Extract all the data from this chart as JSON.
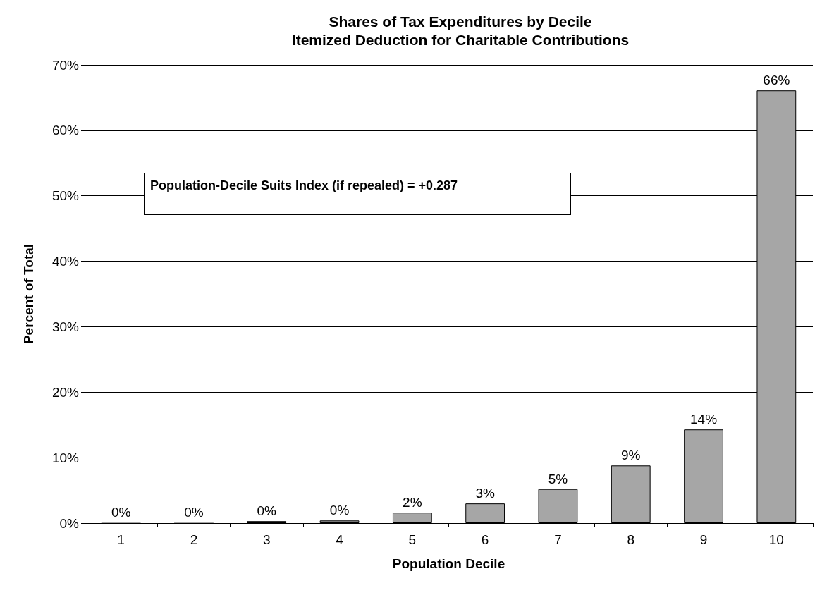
{
  "chart_data": {
    "type": "bar",
    "title": "Shares of Tax Expenditures by Decile\nItemized Deduction for Charitable Contributions",
    "xlabel": "Population Decile",
    "ylabel": "Percent of Total",
    "categories": [
      "1",
      "2",
      "3",
      "4",
      "5",
      "6",
      "7",
      "8",
      "9",
      "10"
    ],
    "values": [
      0.1,
      0.1,
      0.3,
      0.4,
      1.6,
      3.0,
      5.2,
      8.8,
      14.3,
      66.1
    ],
    "value_labels": [
      "0%",
      "0%",
      "0%",
      "0%",
      "2%",
      "3%",
      "5%",
      "9%",
      "14%",
      "66%"
    ],
    "color": "#a6a6a6",
    "ylim": [
      0,
      70
    ],
    "yticks": [
      {
        "value": 0,
        "label": "0%"
      },
      {
        "value": 10,
        "label": "10%"
      },
      {
        "value": 20,
        "label": "20%"
      },
      {
        "value": 30,
        "label": "30%"
      },
      {
        "value": 40,
        "label": "40%"
      },
      {
        "value": 50,
        "label": "50%"
      },
      {
        "value": 60,
        "label": "60%"
      },
      {
        "value": 70,
        "label": "70%"
      }
    ],
    "grid": "y",
    "annotations": [
      "Population-Decile Suits Index (if repealed) = +0.287"
    ]
  }
}
